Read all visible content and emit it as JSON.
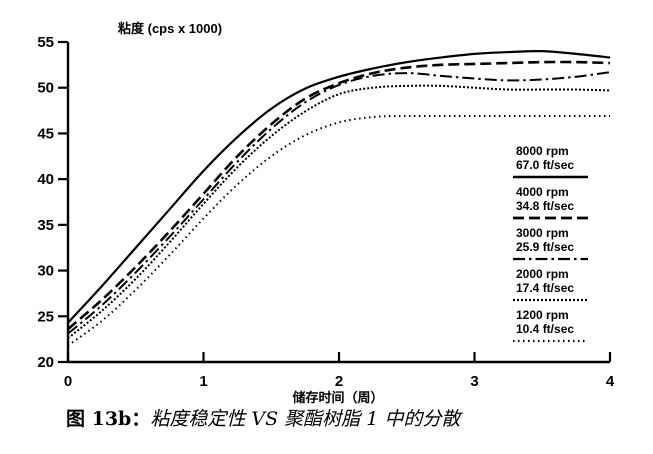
{
  "chart_data": {
    "type": "line",
    "ylabel": "粘度 (cps x 1000)",
    "xlabel": "储存时间（周）",
    "xlim": [
      0,
      4
    ],
    "ylim": [
      20,
      55
    ],
    "xticks": [
      0,
      1,
      2,
      3,
      4
    ],
    "yticks": [
      20,
      25,
      30,
      35,
      40,
      45,
      50,
      55
    ],
    "grid": false,
    "legend_position": "right",
    "series": [
      {
        "name": "8000 rpm\n67.0 ft/sec",
        "style": "solid",
        "x": [
          0,
          0.25,
          0.5,
          0.75,
          1.0,
          1.25,
          1.5,
          1.75,
          2.0,
          2.25,
          2.5,
          2.75,
          3.0,
          3.25,
          3.5,
          3.75,
          4.0
        ],
        "y": [
          24.3,
          28.3,
          32.5,
          36.7,
          40.9,
          44.6,
          47.7,
          49.9,
          51.2,
          52.1,
          52.8,
          53.3,
          53.7,
          53.9,
          54.0,
          53.7,
          53.3
        ]
      },
      {
        "name": "4000 rpm\n34.8 ft/sec",
        "style": "dashed",
        "x": [
          0,
          0.25,
          0.5,
          0.75,
          1.0,
          1.25,
          1.5,
          1.75,
          2.0,
          2.25,
          2.5,
          2.75,
          3.0,
          3.25,
          3.5,
          3.75,
          4.0
        ],
        "y": [
          23.6,
          26.8,
          30.4,
          34.3,
          38.4,
          42.5,
          46.0,
          48.8,
          50.5,
          51.6,
          52.2,
          52.5,
          52.6,
          52.7,
          52.8,
          52.8,
          52.7
        ]
      },
      {
        "name": "3000 rpm\n25.9 ft/sec",
        "style": "dashdot",
        "x": [
          0,
          0.25,
          0.5,
          0.75,
          1.0,
          1.25,
          1.5,
          1.75,
          2.0,
          2.25,
          2.5,
          2.75,
          3.0,
          3.25,
          3.5,
          3.75,
          4.0
        ],
        "y": [
          23.1,
          26.2,
          29.8,
          33.7,
          37.8,
          41.9,
          45.5,
          48.4,
          50.3,
          51.3,
          51.6,
          51.3,
          51.0,
          50.8,
          50.9,
          51.2,
          51.7
        ]
      },
      {
        "name": "2000 rpm\n17.4 ft/sec",
        "style": "dotted",
        "x": [
          0,
          0.25,
          0.5,
          0.75,
          1.0,
          1.25,
          1.5,
          1.75,
          2.0,
          2.25,
          2.5,
          2.75,
          3.0,
          3.25,
          3.5,
          3.75,
          4.0
        ],
        "y": [
          22.6,
          25.6,
          29.1,
          33.1,
          37.3,
          41.3,
          44.7,
          47.4,
          49.3,
          50.0,
          50.2,
          50.2,
          50.0,
          49.8,
          49.8,
          49.8,
          49.7
        ]
      },
      {
        "name": "1200 rpm\n10.4 ft/sec",
        "style": "sparse-dotted",
        "x": [
          0,
          0.25,
          0.5,
          0.75,
          1.0,
          1.25,
          1.5,
          1.75,
          2.0,
          2.25,
          2.5,
          2.75,
          3.0,
          3.25,
          3.5,
          3.75,
          4.0
        ],
        "y": [
          21.8,
          24.5,
          27.9,
          31.7,
          35.7,
          39.4,
          42.5,
          44.8,
          46.2,
          46.8,
          46.9,
          46.9,
          46.9,
          46.9,
          46.9,
          46.9,
          46.9
        ]
      }
    ]
  },
  "caption": {
    "figure_label": "图 13b：",
    "text": "粘度稳定性 VS 聚酯树脂 1 中的分散"
  }
}
